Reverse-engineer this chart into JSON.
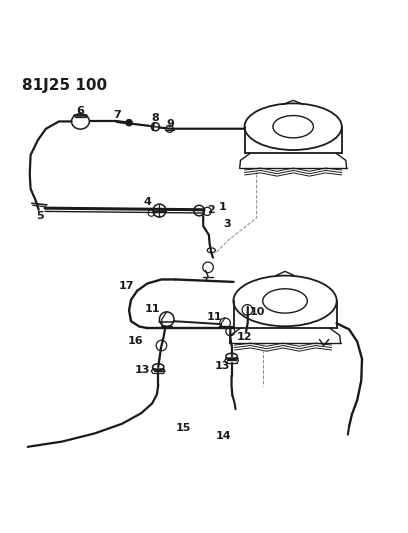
{
  "title": "81J25 100",
  "bg_color": "#ffffff",
  "line_color": "#1a1a1a",
  "title_fontsize": 11,
  "label_fontsize": 8,
  "figsize": [
    4.08,
    5.33
  ],
  "dpi": 100
}
